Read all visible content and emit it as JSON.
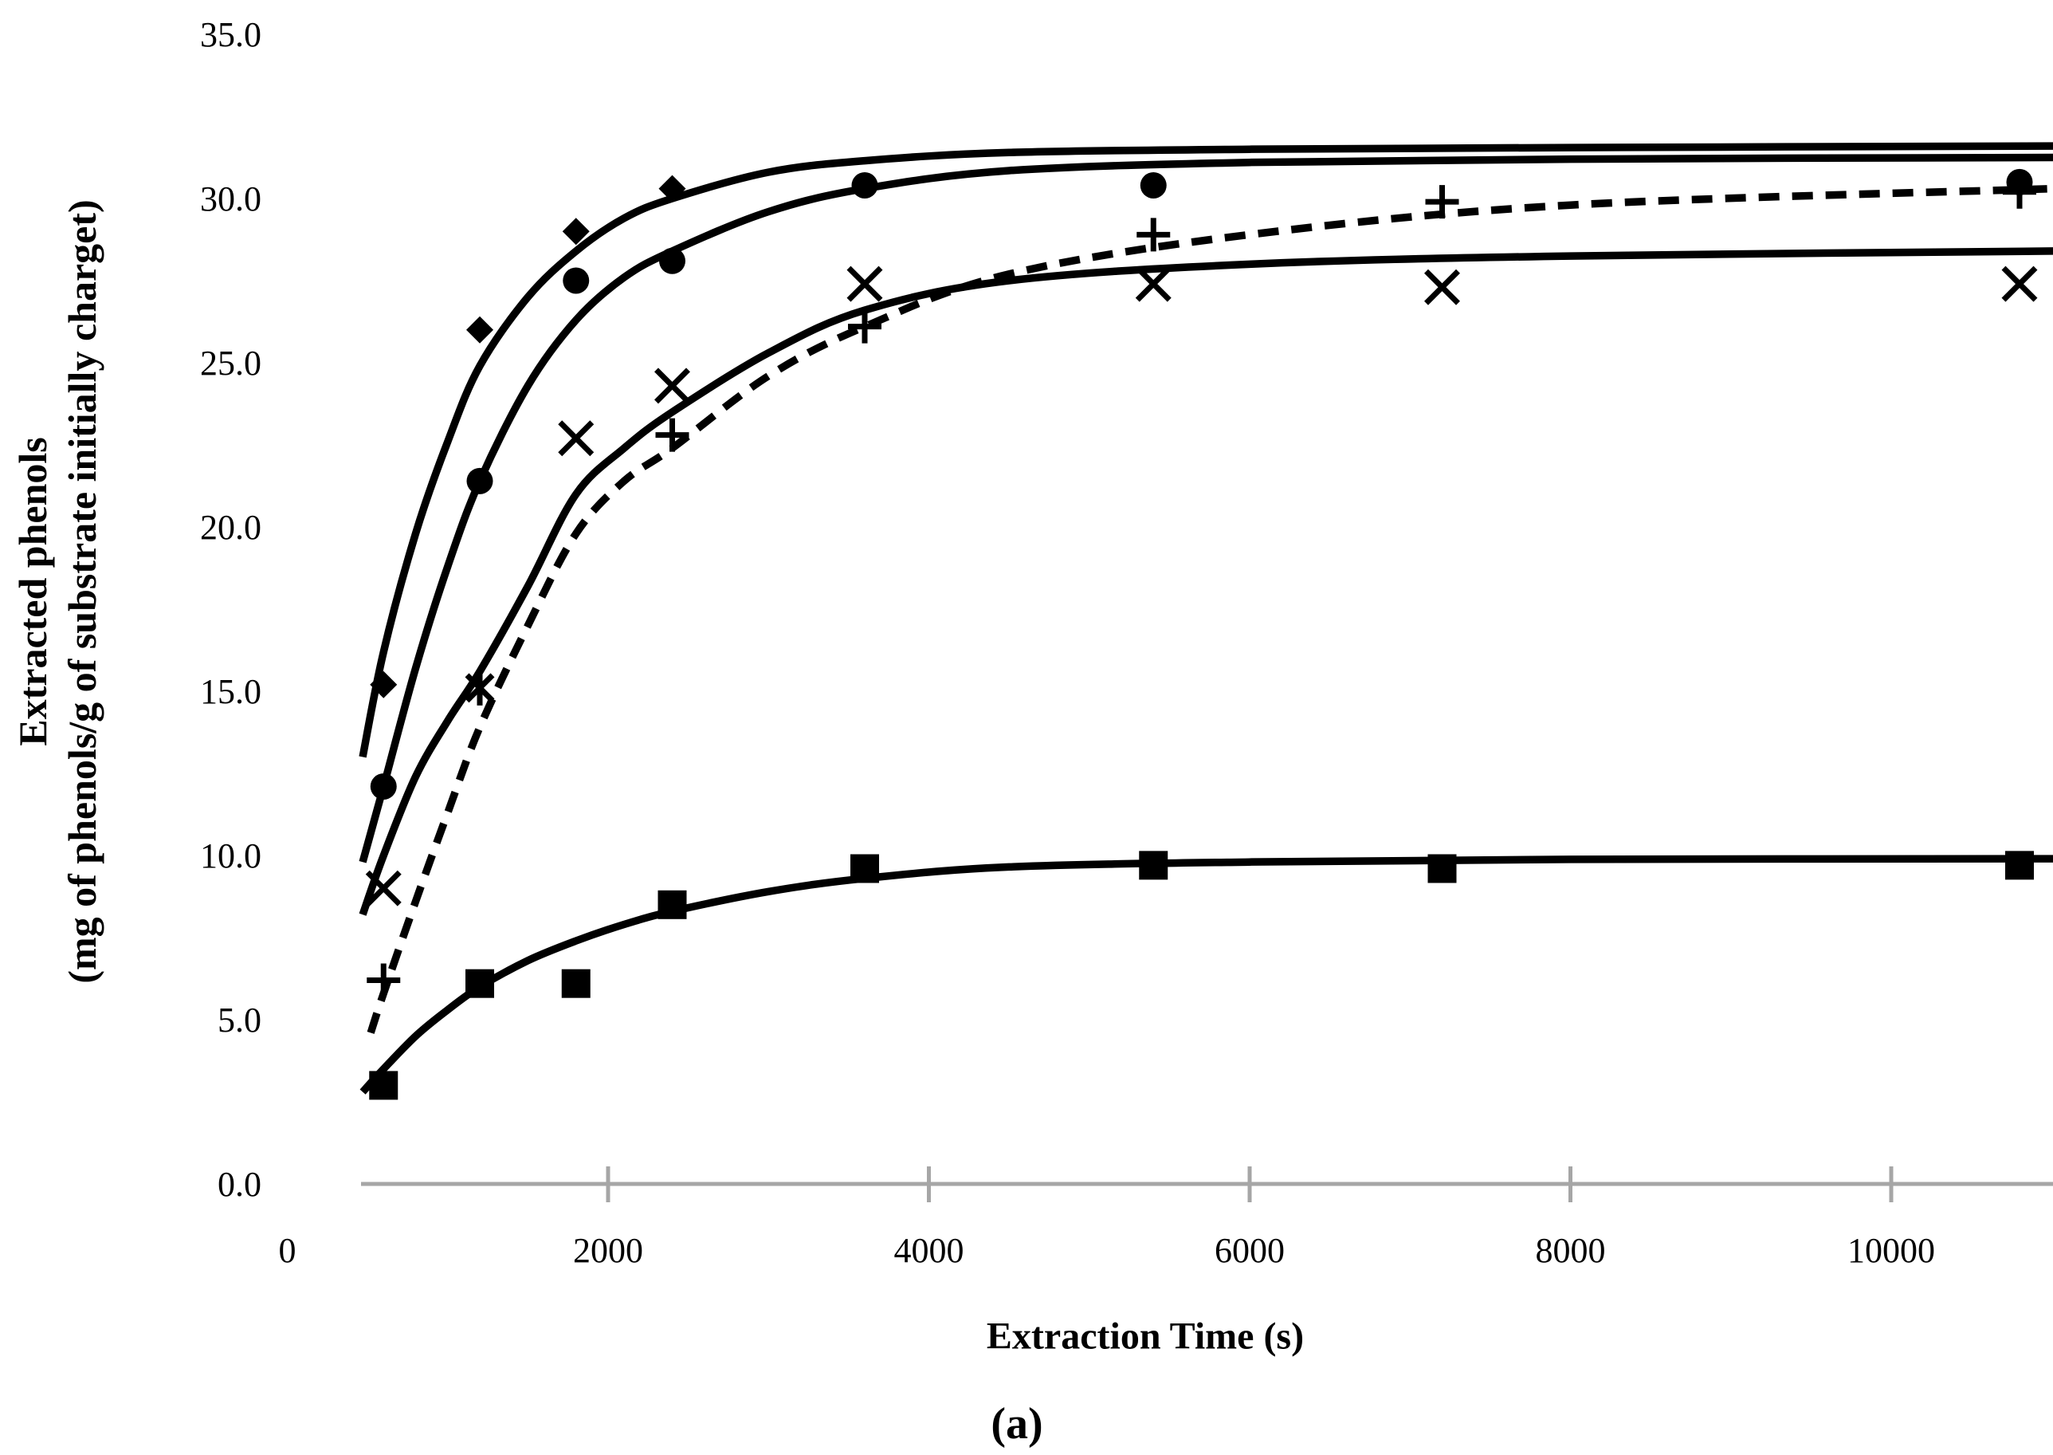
{
  "chart_data": {
    "type": "scatter",
    "title": "",
    "xlabel": "Extraction Time (s)",
    "ylabel_line1": "Extracted phenols",
    "ylabel_line2": "(mg of phenols/g of substrate initially charget)",
    "caption": "(a)",
    "xlim": [
      0,
      11010
    ],
    "ylim": [
      0.0,
      35.0
    ],
    "grid": false,
    "legend": "none",
    "axis_color": "#A6A6A6",
    "series_color": "#000000",
    "x_ticks": [
      0,
      2000,
      4000,
      6000,
      8000,
      10000
    ],
    "x_tick_labels": [
      "0",
      "2000",
      "4000",
      "6000",
      "8000",
      "10000"
    ],
    "y_ticks": [
      0,
      5,
      10,
      15,
      20,
      25,
      30,
      35
    ],
    "y_tick_labels": [
      "0.0",
      "5.0",
      "10.0",
      "15.0",
      "20.0",
      "25.0",
      "30.0",
      "35.0"
    ],
    "series": [
      {
        "name": "diamond-series",
        "marker": "diamond",
        "points": [
          [
            600,
            15.2
          ],
          [
            1200,
            26.0
          ],
          [
            1800,
            29.0
          ],
          [
            2400,
            30.3
          ]
        ],
        "fit_curve": {
          "style": "solid",
          "points": [
            [
              470,
              13.0
            ],
            [
              600,
              16.2
            ],
            [
              800,
              19.8
            ],
            [
              1000,
              22.6
            ],
            [
              1200,
              24.9
            ],
            [
              1500,
              27.0
            ],
            [
              1800,
              28.4
            ],
            [
              2100,
              29.4
            ],
            [
              2400,
              30.0
            ],
            [
              3000,
              30.8
            ],
            [
              3600,
              31.15
            ],
            [
              4500,
              31.4
            ],
            [
              6000,
              31.5
            ],
            [
              8000,
              31.55
            ],
            [
              11010,
              31.6
            ]
          ]
        }
      },
      {
        "name": "circle-series",
        "marker": "circle",
        "points": [
          [
            600,
            12.1
          ],
          [
            1200,
            21.4
          ],
          [
            1800,
            27.5
          ],
          [
            2400,
            28.1
          ],
          [
            3600,
            30.4
          ],
          [
            5400,
            30.4
          ],
          [
            10800,
            30.5
          ]
        ],
        "fit_curve": {
          "style": "solid",
          "points": [
            [
              470,
              9.8
            ],
            [
              600,
              12.1
            ],
            [
              800,
              15.7
            ],
            [
              1000,
              18.8
            ],
            [
              1200,
              21.4
            ],
            [
              1500,
              24.3
            ],
            [
              1800,
              26.3
            ],
            [
              2100,
              27.6
            ],
            [
              2400,
              28.4
            ],
            [
              3000,
              29.6
            ],
            [
              3600,
              30.3
            ],
            [
              4500,
              30.85
            ],
            [
              6000,
              31.1
            ],
            [
              8000,
              31.2
            ],
            [
              11010,
              31.25
            ]
          ]
        }
      },
      {
        "name": "x-series",
        "marker": "x",
        "points": [
          [
            600,
            9.0
          ],
          [
            1800,
            22.7
          ],
          [
            2400,
            24.3
          ],
          [
            3600,
            27.4
          ],
          [
            5400,
            27.4
          ],
          [
            7200,
            27.3
          ],
          [
            10800,
            27.4
          ]
        ],
        "fit_curve": {
          "style": "solid",
          "points": [
            [
              470,
              8.2
            ],
            [
              600,
              10.0
            ],
            [
              800,
              12.4
            ],
            [
              1000,
              14.1
            ],
            [
              1200,
              15.6
            ],
            [
              1500,
              18.2
            ],
            [
              1800,
              21.0
            ],
            [
              2100,
              22.4
            ],
            [
              2400,
              23.5
            ],
            [
              3000,
              25.3
            ],
            [
              3600,
              26.6
            ],
            [
              4500,
              27.5
            ],
            [
              6000,
              28.0
            ],
            [
              8000,
              28.25
            ],
            [
              11010,
              28.4
            ]
          ]
        }
      },
      {
        "name": "star-overlap-point",
        "marker": "star",
        "points": [
          [
            1200,
            15.1
          ]
        ],
        "fit_curve": null
      },
      {
        "name": "plus-series",
        "marker": "plus",
        "points": [
          [
            600,
            6.2
          ],
          [
            2400,
            22.8
          ],
          [
            3600,
            26.1
          ],
          [
            5400,
            28.9
          ],
          [
            7200,
            29.9
          ],
          [
            10800,
            30.2
          ]
        ],
        "fit_curve": {
          "style": "dashed",
          "points": [
            [
              520,
              4.6
            ],
            [
              600,
              5.8
            ],
            [
              800,
              8.6
            ],
            [
              1000,
              11.3
            ],
            [
              1200,
              13.9
            ],
            [
              1500,
              17.0
            ],
            [
              1800,
              19.8
            ],
            [
              2100,
              21.4
            ],
            [
              2400,
              22.4
            ],
            [
              3000,
              24.6
            ],
            [
              3600,
              26.1
            ],
            [
              4500,
              27.7
            ],
            [
              6000,
              28.9
            ],
            [
              8000,
              29.8
            ],
            [
              11010,
              30.3
            ]
          ]
        }
      },
      {
        "name": "square-series",
        "marker": "square",
        "points": [
          [
            600,
            3.0
          ],
          [
            1200,
            6.1
          ],
          [
            1800,
            6.1
          ],
          [
            2400,
            8.5
          ],
          [
            3600,
            9.6
          ],
          [
            5400,
            9.7
          ],
          [
            7200,
            9.6
          ],
          [
            10800,
            9.7
          ]
        ],
        "fit_curve": {
          "style": "solid",
          "points": [
            [
              470,
              2.8
            ],
            [
              600,
              3.5
            ],
            [
              800,
              4.5
            ],
            [
              1000,
              5.3
            ],
            [
              1200,
              6.0
            ],
            [
              1500,
              6.8
            ],
            [
              1800,
              7.4
            ],
            [
              2100,
              7.9
            ],
            [
              2400,
              8.3
            ],
            [
              3000,
              8.9
            ],
            [
              3600,
              9.3
            ],
            [
              4500,
              9.65
            ],
            [
              6000,
              9.8
            ],
            [
              8000,
              9.88
            ],
            [
              11010,
              9.9
            ]
          ]
        }
      }
    ]
  }
}
